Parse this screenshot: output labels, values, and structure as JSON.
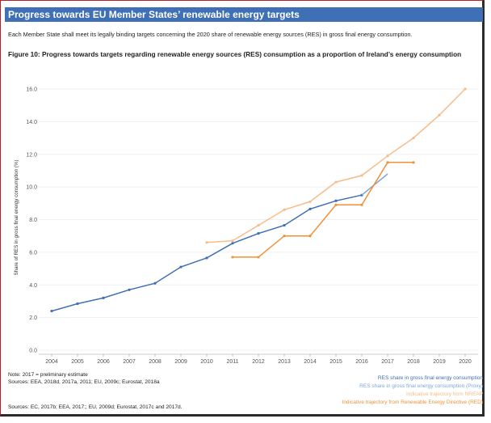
{
  "header": {
    "title": "Progress towards EU Member States’ renewable energy  targets",
    "intro": "Each Member State shall meet its legally binding targets concerning the 2020 share of renewable energy sources (RES) in gross final energy consumption."
  },
  "chart_data": {
    "type": "line",
    "title": "Figure 10: Progress towards targets regarding renewable energy sources (RES) consumption as a proportion of Ireland’s  energy consumption",
    "xlabel": "",
    "ylabel": "Share of RES in gross final energy consumption (%)",
    "ylim": [
      0,
      16
    ],
    "yticks": [
      "0.0",
      "2.0",
      "4.0",
      "6.0",
      "8.0",
      "10.0",
      "12.0",
      "14.0",
      "16.0"
    ],
    "categories": [
      "2004",
      "2005",
      "2006",
      "2007",
      "2008",
      "2009",
      "2010",
      "2011",
      "2012",
      "2013",
      "2014",
      "2015",
      "2016",
      "2017",
      "2018",
      "2019",
      "2020"
    ],
    "series": [
      {
        "name": "RES share in gross final energy consumption",
        "color": "#3f6fb4",
        "marker": true,
        "points": [
          [
            2004,
            2.4
          ],
          [
            2005,
            2.85
          ],
          [
            2006,
            3.2
          ],
          [
            2007,
            3.7
          ],
          [
            2008,
            4.1
          ],
          [
            2009,
            5.1
          ],
          [
            2010,
            5.65
          ],
          [
            2011,
            6.55
          ],
          [
            2012,
            7.15
          ],
          [
            2013,
            7.65
          ],
          [
            2014,
            8.65
          ],
          [
            2015,
            9.15
          ],
          [
            2016,
            9.5
          ]
        ]
      },
      {
        "name": "RES share in gross final energy consumption (Proxy)",
        "color": "#7ba7dc",
        "marker": false,
        "points": [
          [
            2016,
            9.5
          ],
          [
            2017,
            10.8
          ]
        ]
      },
      {
        "name": "Indicative trajectory from NREAP",
        "color": "#f8bc8a",
        "marker": true,
        "points": [
          [
            2010,
            6.6
          ],
          [
            2011,
            6.7
          ],
          [
            2012,
            7.65
          ],
          [
            2013,
            8.6
          ],
          [
            2014,
            9.1
          ],
          [
            2015,
            10.3
          ],
          [
            2016,
            10.7
          ],
          [
            2017,
            11.9
          ],
          [
            2018,
            13.0
          ],
          [
            2019,
            14.4
          ],
          [
            2020,
            16.0
          ]
        ]
      },
      {
        "name": "Indicative trajectory from Renewable Energy Directive (RED)",
        "color": "#f0913a",
        "marker": true,
        "step": true,
        "points": [
          [
            2011,
            5.7
          ],
          [
            2012,
            5.7
          ],
          [
            2013,
            7.0
          ],
          [
            2014,
            7.0
          ],
          [
            2015,
            8.9
          ],
          [
            2016,
            8.9
          ],
          [
            2017,
            11.5
          ],
          [
            2018,
            11.5
          ]
        ]
      }
    ]
  },
  "notes": {
    "note": "Note: 2017 = preliminary estimate",
    "sources1": "Sources: EEA, 2018d, 2017a, 2011; EU, 2009c; Eurostat, 2018a",
    "sources2": "Sources: EC, 2017b; EEA, 2017;; EU, 2009d; Eurostat, 2017c and 2017d."
  },
  "legend": [
    {
      "label": "RES share in gross final energy consumption",
      "color": "#3f6fb4"
    },
    {
      "label": "RES share in gross final energy consumption (Proxy)",
      "color": "#7ba7dc"
    },
    {
      "label": "Indicative trajectory from NREAP",
      "color": "#f8bc8a"
    },
    {
      "label": "Indicative trajectory from Renewable Energy Directive (RED)",
      "color": "#f0913a"
    }
  ]
}
